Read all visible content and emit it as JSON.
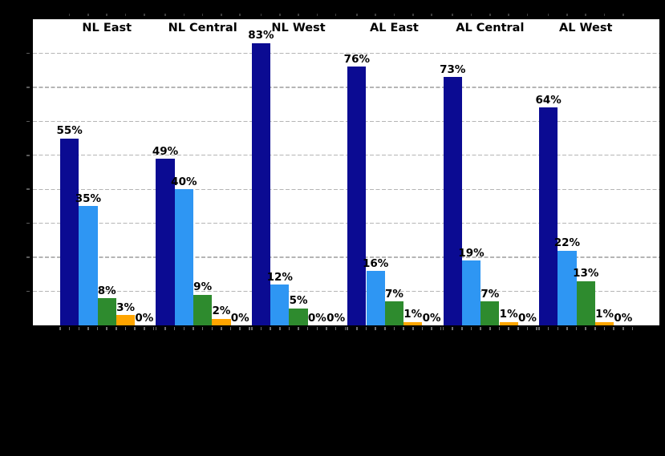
{
  "colors": {
    "background": "#000000",
    "plot_background": "#ffffff",
    "grid": "#b5b5b5",
    "label_text": "#000000"
  },
  "chart_data": {
    "type": "bar",
    "categories": [
      "NL East",
      "NL Central",
      "NL West",
      "AL East",
      "AL Central",
      "AL West"
    ],
    "series": [
      {
        "name": "navy-bar-series",
        "color": "#0b0b92",
        "values": [
          55,
          49,
          83,
          76,
          73,
          64
        ]
      },
      {
        "name": "light-blue-bar-series",
        "color": "#2e96f3",
        "values": [
          35,
          40,
          12,
          16,
          19,
          22
        ]
      },
      {
        "name": "green-bar-series",
        "color": "#2e8b2e",
        "values": [
          8,
          9,
          5,
          7,
          7,
          13
        ]
      },
      {
        "name": "orange-bar-series",
        "color": "#ffa500",
        "values": [
          3,
          2,
          0,
          1,
          1,
          1
        ]
      },
      {
        "name": "zero-bar-series",
        "color": null,
        "values": [
          0,
          0,
          0,
          0,
          0,
          0
        ]
      }
    ],
    "value_labels": [
      "55%",
      "35%",
      "8%",
      "3%",
      "0%",
      "49%",
      "40%",
      "9%",
      "2%",
      "0%",
      "83%",
      "12%",
      "5%",
      "0%",
      "0%",
      "76%",
      "16%",
      "7%",
      "1%",
      "0%",
      "73%",
      "19%",
      "7%",
      "1%",
      "0%",
      "64%",
      "22%",
      "13%",
      "1%",
      "0%"
    ],
    "value_label_suffix": "%",
    "ylim": [
      0,
      90
    ],
    "gridline_values": [
      10,
      20,
      30,
      40,
      50,
      60,
      70,
      80
    ],
    "grid_style": "dashed-horizontal",
    "legend_position": "none-visible"
  }
}
